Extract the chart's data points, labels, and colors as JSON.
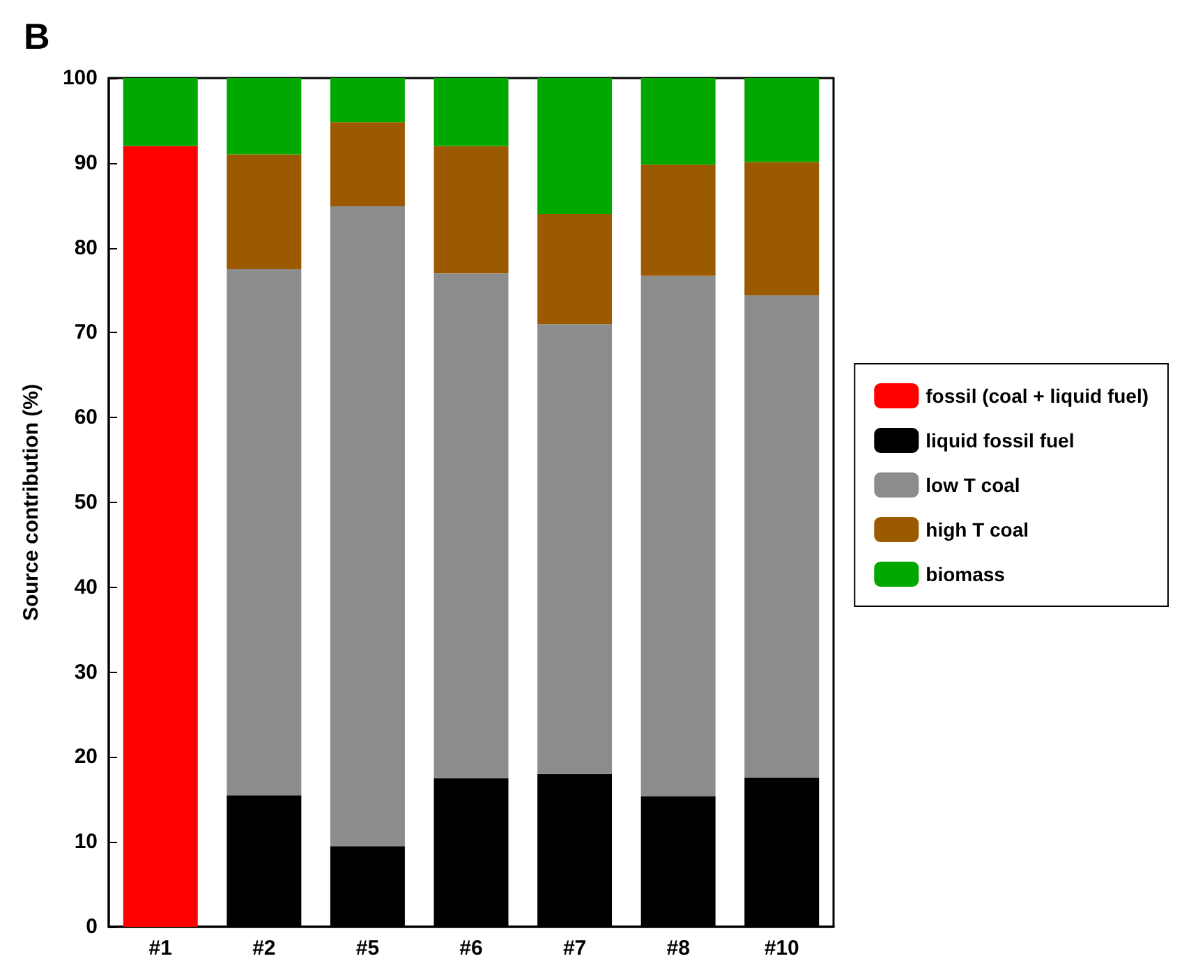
{
  "chart_data": {
    "type": "bar",
    "title": "B",
    "ylabel": "Source contribution (%)",
    "categories": [
      "#1",
      "#2",
      "#5",
      "#6",
      "#7",
      "#8",
      "#10"
    ],
    "stacked": true,
    "legend": "right",
    "ylim": [
      0,
      100
    ],
    "yticks": [
      0,
      10,
      20,
      30,
      40,
      50,
      60,
      70,
      80,
      90,
      100
    ],
    "series": [
      {
        "name": "fossil (coal + liquid fuel)",
        "color": "#ff0000",
        "values": [
          92,
          null,
          null,
          null,
          null,
          null,
          null
        ]
      },
      {
        "name": "liquid fossil fuel",
        "color": "#000000",
        "values": [
          null,
          15.5,
          9.5,
          17.5,
          18,
          15.4,
          17.6
        ]
      },
      {
        "name": "low T coal",
        "color": "#8c8c8c",
        "values": [
          null,
          62,
          75.4,
          59.5,
          53,
          61.3,
          56.8
        ]
      },
      {
        "name": "high T coal",
        "color": "#9c5a00",
        "values": [
          null,
          13.5,
          9.9,
          15,
          13,
          13.1,
          15.7
        ]
      },
      {
        "name": "biomass",
        "color": "#00a800",
        "values": [
          8,
          9,
          5.2,
          8,
          16,
          10.2,
          9.9
        ]
      }
    ]
  }
}
